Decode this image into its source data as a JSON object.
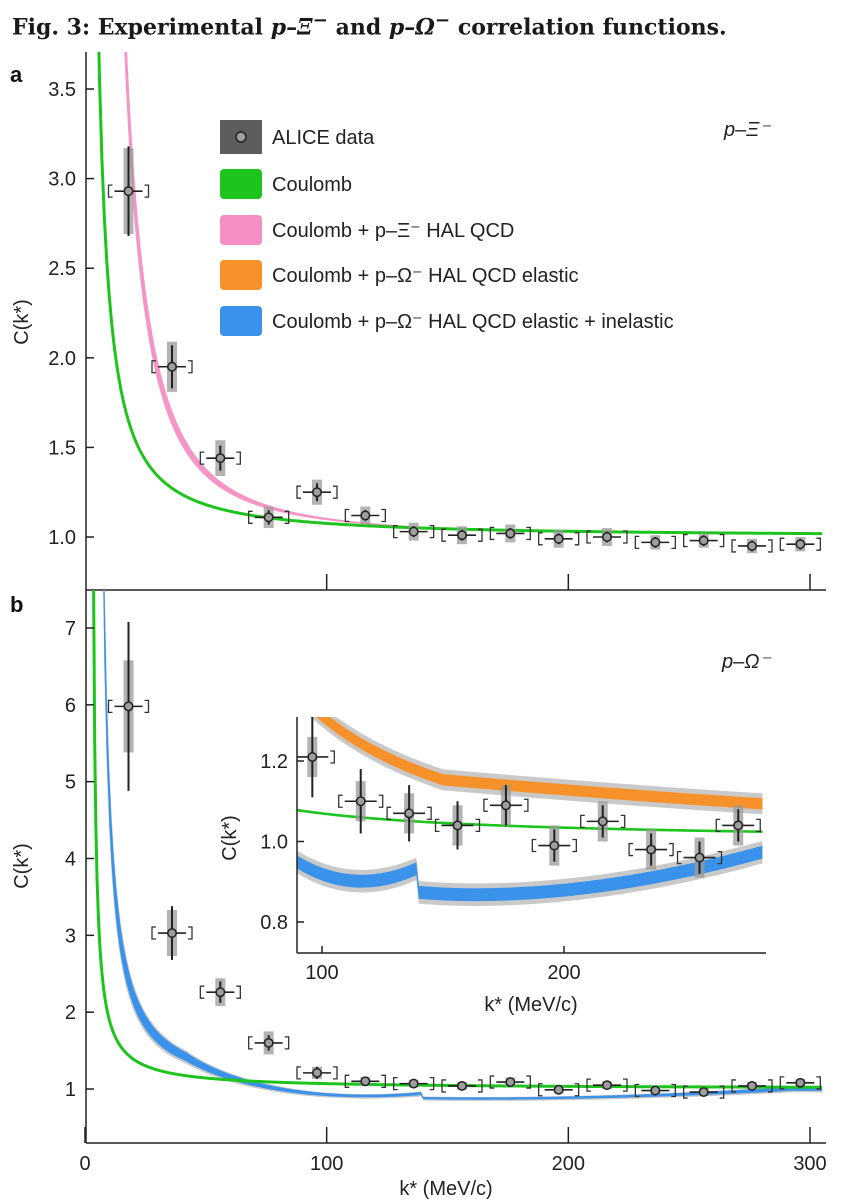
{
  "figure_title": {
    "prefix": "Fig. 3: Experimental ",
    "p1": "p–Ξ",
    "sup1": "−",
    "mid": " and ",
    "p2": "p–Ω",
    "sup2": "−",
    "suffix": " correlation functions."
  },
  "legend": {
    "items": [
      {
        "key": "data",
        "label": "ALICE data",
        "color": "#555555"
      },
      {
        "key": "coulomb",
        "label": "Coulomb",
        "color": "#1ec41e"
      },
      {
        "key": "xi_hal",
        "label": "Coulomb + p–Ξ⁻ HAL QCD",
        "color": "#f48fc4"
      },
      {
        "key": "om_el",
        "label": "Coulomb + p–Ω⁻ HAL QCD elastic",
        "color": "#f7922a"
      },
      {
        "key": "om_inel",
        "label": "Coulomb + p–Ω⁻ HAL QCD elastic + inelastic",
        "color": "#3a92ea"
      }
    ]
  },
  "chart_data": [
    {
      "panel": "a",
      "type": "scatter",
      "system_label": "p–Ξ⁻",
      "xlabel": "",
      "ylabel": "C(k*)",
      "xlim": [
        0,
        305
      ],
      "ylim": [
        0.7,
        3.65
      ],
      "yticks": [
        1.0,
        1.5,
        2.0,
        2.5,
        3.0,
        3.5
      ],
      "xticks": [
        100,
        200,
        300
      ],
      "series": [
        {
          "name": "ALICE data",
          "x": [
            18,
            36,
            56,
            76,
            96,
            116,
            136,
            156,
            176,
            196,
            216,
            236,
            256,
            276,
            296
          ],
          "y": [
            2.93,
            1.95,
            1.44,
            1.11,
            1.25,
            1.12,
            1.03,
            1.01,
            1.02,
            0.99,
            1.0,
            0.97,
            0.98,
            0.95,
            0.96
          ],
          "stat_err": [
            0.25,
            0.12,
            0.07,
            0.04,
            0.05,
            0.03,
            0.03,
            0.03,
            0.03,
            0.03,
            0.03,
            0.03,
            0.03,
            0.03,
            0.03
          ],
          "sys_err": [
            0.24,
            0.14,
            0.1,
            0.06,
            0.07,
            0.05,
            0.05,
            0.05,
            0.05,
            0.05,
            0.05,
            0.04,
            0.04,
            0.04,
            0.04
          ]
        },
        {
          "name": "Coulomb",
          "curve": "1 + 24/x^1.25"
        },
        {
          "name": "Coulomb + p–Ξ⁻ HAL QCD",
          "band": "1 + 500/x^1.85 ± 8%"
        }
      ]
    },
    {
      "panel": "b",
      "type": "scatter",
      "system_label": "p–Ω⁻",
      "xlabel": "k* (MeV/c)",
      "ylabel": "C(k*)",
      "xlim": [
        0,
        305
      ],
      "ylim": [
        0.4,
        7.5
      ],
      "yticks": [
        1,
        2,
        3,
        4,
        5,
        6,
        7
      ],
      "xticks": [
        0,
        100,
        200,
        300
      ],
      "series": [
        {
          "name": "ALICE data",
          "x": [
            18,
            36,
            56,
            76,
            96,
            116,
            136,
            156,
            176,
            196,
            216,
            236,
            256,
            276,
            296
          ],
          "y": [
            5.98,
            3.03,
            2.26,
            1.6,
            1.21,
            1.1,
            1.07,
            1.04,
            1.09,
            0.99,
            1.05,
            0.98,
            0.96,
            1.04,
            1.08
          ],
          "stat_err": [
            1.1,
            0.35,
            0.14,
            0.1,
            0.08,
            0.05,
            0.05,
            0.04,
            0.04,
            0.04,
            0.04,
            0.04,
            0.04,
            0.04,
            0.04
          ],
          "sys_err": [
            0.6,
            0.3,
            0.18,
            0.15,
            0.08,
            0.06,
            0.05,
            0.05,
            0.06,
            0.05,
            0.05,
            0.05,
            0.05,
            0.05,
            0.05
          ]
        }
      ]
    },
    {
      "panel": "b-inset",
      "type": "scatter",
      "xlabel": "k* (MeV/c)",
      "ylabel": "C(k*)",
      "xlim": [
        85,
        280
      ],
      "ylim": [
        0.74,
        1.3
      ],
      "yticks": [
        0.8,
        1.0,
        1.2
      ],
      "xticks": [
        100,
        200
      ],
      "series": [
        {
          "name": "ALICE data",
          "x": [
            96,
            116,
            136,
            156,
            176,
            196,
            216,
            236,
            256,
            272
          ],
          "y": [
            1.21,
            1.1,
            1.07,
            1.04,
            1.09,
            0.99,
            1.05,
            0.98,
            0.96,
            1.04
          ],
          "stat_err": [
            0.1,
            0.08,
            0.07,
            0.06,
            0.05,
            0.04,
            0.04,
            0.04,
            0.04,
            0.04
          ],
          "sys_err": [
            0.05,
            0.05,
            0.05,
            0.05,
            0.05,
            0.05,
            0.05,
            0.05,
            0.05,
            0.05
          ]
        }
      ]
    }
  ],
  "panel_labels": {
    "a": "a",
    "b": "b"
  },
  "colors": {
    "coulomb": "#1ec41e",
    "xi_band": "#f48fc4",
    "om_el": "#f7922a",
    "om_inel": "#3a92ea",
    "grey_band": "#c9c9c9",
    "data": "#444444"
  }
}
